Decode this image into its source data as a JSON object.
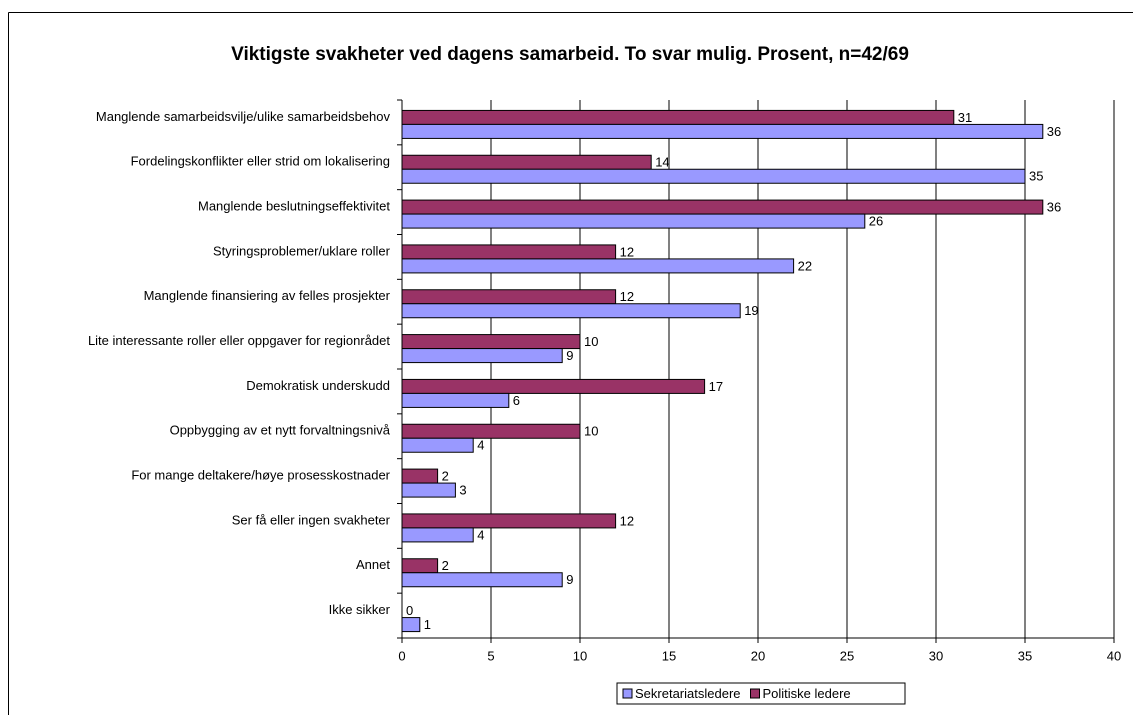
{
  "chart_data": {
    "type": "bar",
    "orientation": "horizontal",
    "title": "Viktigste svakheter ved dagens samarbeid. To svar mulig. Prosent, n=42/69",
    "categories": [
      "Manglende samarbeidsvilje/ulike samarbeidsbehov",
      "Fordelingskonflikter eller strid om lokalisering",
      "Manglende beslutningseffektivitet",
      "Styringsproblemer/uklare roller",
      "Manglende finansiering av felles prosjekter",
      "Lite interessante roller eller oppgaver for regionrådet",
      "Demokratisk underskudd ",
      "Oppbygging av et nytt forvaltningsnivå",
      "For mange deltakere/høye prosesskostnader",
      "Ser få eller ingen svakheter",
      "Annet",
      "Ikke sikker"
    ],
    "series": [
      {
        "name": "Sekretariatsledere",
        "color": "#9999ff",
        "values": [
          36,
          35,
          26,
          22,
          19,
          9,
          6,
          4,
          3,
          4,
          9,
          1
        ]
      },
      {
        "name": "Politiske ledere",
        "color": "#993366",
        "values": [
          31,
          14,
          36,
          12,
          12,
          10,
          17,
          10,
          2,
          12,
          2,
          0
        ]
      }
    ],
    "xlim": [
      0,
      40
    ],
    "xticks": [
      0,
      5,
      10,
      15,
      20,
      25,
      30,
      35,
      40
    ],
    "grid": true,
    "legend": "bottom"
  }
}
